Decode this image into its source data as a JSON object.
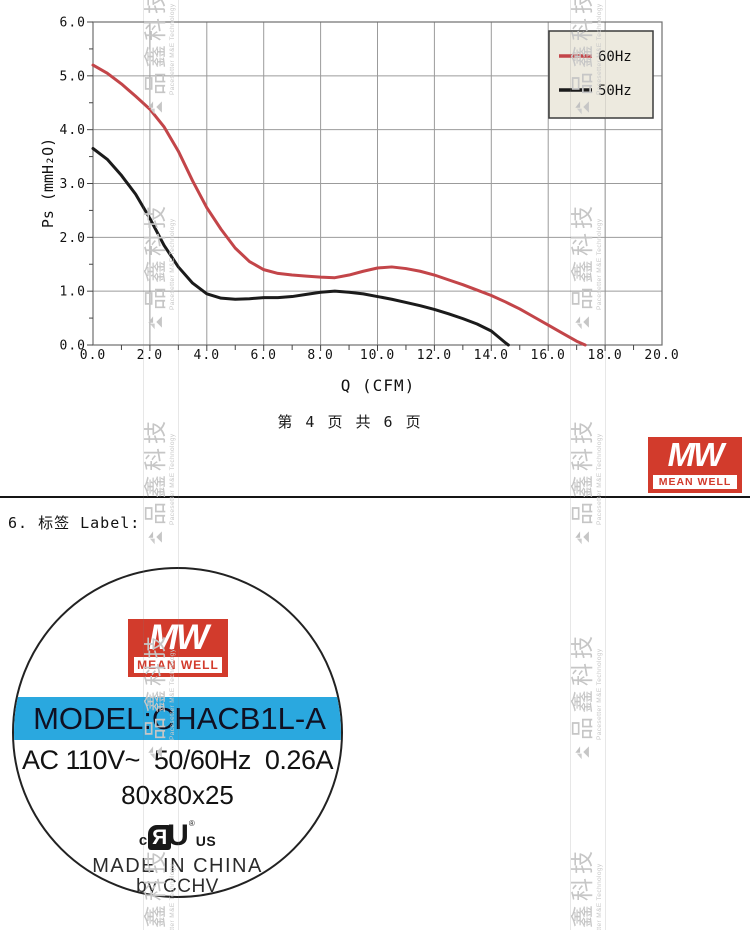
{
  "page": {
    "footer": "第 4 页 共 6 页",
    "section_heading": "6. 标签 Label:"
  },
  "chart_data": {
    "type": "line",
    "title": "",
    "xlabel": "Q (CFM)",
    "ylabel": "Ps (mmH₂O)",
    "xlim": [
      0,
      20
    ],
    "ylim": [
      0,
      6
    ],
    "xtick_step": 2,
    "ytick_step": 1,
    "x_minor_step": 1,
    "y_minor_step": 0.5,
    "grid": true,
    "legend_position": "top-right",
    "series": [
      {
        "name": "60Hz",
        "color": "#c34549",
        "points": [
          [
            0,
            5.2
          ],
          [
            0.5,
            5.05
          ],
          [
            1,
            4.85
          ],
          [
            1.5,
            4.62
          ],
          [
            2,
            4.38
          ],
          [
            2.5,
            4.05
          ],
          [
            3,
            3.6
          ],
          [
            3.5,
            3.05
          ],
          [
            4,
            2.55
          ],
          [
            4.5,
            2.15
          ],
          [
            5,
            1.8
          ],
          [
            5.5,
            1.55
          ],
          [
            6,
            1.4
          ],
          [
            6.5,
            1.33
          ],
          [
            7,
            1.3
          ],
          [
            7.5,
            1.28
          ],
          [
            8,
            1.26
          ],
          [
            8.5,
            1.25
          ],
          [
            9,
            1.3
          ],
          [
            9.5,
            1.37
          ],
          [
            10,
            1.43
          ],
          [
            10.5,
            1.45
          ],
          [
            11,
            1.42
          ],
          [
            11.5,
            1.37
          ],
          [
            12,
            1.3
          ],
          [
            12.5,
            1.21
          ],
          [
            13,
            1.12
          ],
          [
            13.5,
            1.02
          ],
          [
            14,
            0.92
          ],
          [
            14.5,
            0.8
          ],
          [
            15,
            0.67
          ],
          [
            15.5,
            0.52
          ],
          [
            16,
            0.37
          ],
          [
            16.5,
            0.22
          ],
          [
            17,
            0.07
          ],
          [
            17.3,
            0
          ]
        ]
      },
      {
        "name": "50Hz",
        "color": "#1b1b1b",
        "points": [
          [
            0,
            3.65
          ],
          [
            0.5,
            3.45
          ],
          [
            1,
            3.15
          ],
          [
            1.5,
            2.8
          ],
          [
            2,
            2.35
          ],
          [
            2.5,
            1.85
          ],
          [
            3,
            1.45
          ],
          [
            3.5,
            1.15
          ],
          [
            4,
            0.95
          ],
          [
            4.5,
            0.87
          ],
          [
            5,
            0.85
          ],
          [
            5.5,
            0.86
          ],
          [
            6,
            0.88
          ],
          [
            6.5,
            0.88
          ],
          [
            7,
            0.9
          ],
          [
            7.5,
            0.94
          ],
          [
            8,
            0.98
          ],
          [
            8.5,
            1.0
          ],
          [
            9,
            0.98
          ],
          [
            9.5,
            0.95
          ],
          [
            10,
            0.9
          ],
          [
            10.5,
            0.85
          ],
          [
            11,
            0.79
          ],
          [
            11.5,
            0.73
          ],
          [
            12,
            0.66
          ],
          [
            12.5,
            0.58
          ],
          [
            13,
            0.49
          ],
          [
            13.5,
            0.39
          ],
          [
            14,
            0.26
          ],
          [
            14.5,
            0.04
          ],
          [
            14.6,
            0
          ]
        ]
      }
    ]
  },
  "brand": {
    "monogram": "MW",
    "wordmark": "MEAN WELL"
  },
  "label": {
    "model": "MODEL:CHACB1L-A",
    "rating": "AC 110V~  50/60Hz  0.26A",
    "dimensions": "80x80x25",
    "ul": {
      "c": "c",
      "r": "Я",
      "u": "U",
      "reg": "®",
      "us": "US"
    },
    "origin": "MADE IN CHINA",
    "manufacturer": "by CCHV"
  },
  "watermark": {
    "chars": [
      "品",
      "鑫",
      "科",
      "技"
    ],
    "caption": "Pacesetter M&E Technology"
  },
  "colors": {
    "brand_red": "#d23b2c",
    "label_blue": "#2aa8df",
    "legend_bg": "#edeadf",
    "grid": "#9b9b9b",
    "curve_60hz": "#c34549",
    "curve_50hz": "#1b1b1b"
  }
}
